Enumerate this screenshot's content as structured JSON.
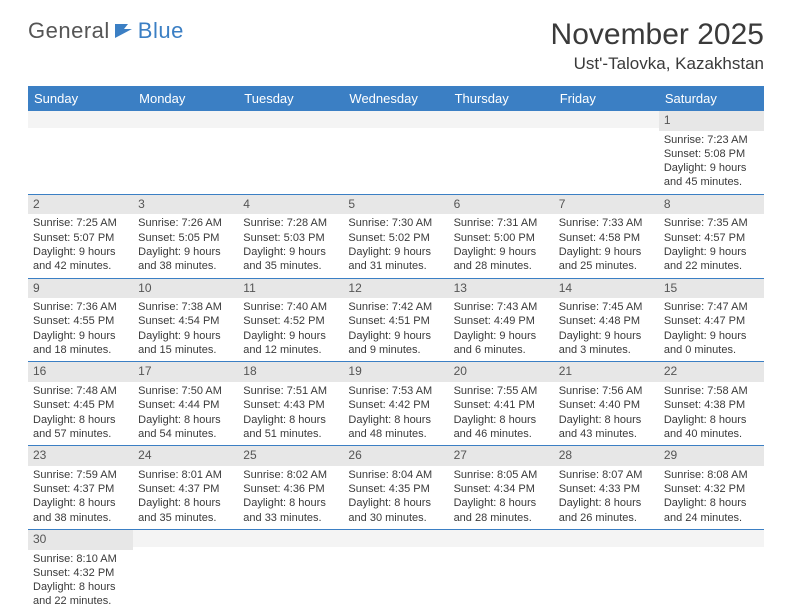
{
  "logo": {
    "text1": "General",
    "text2": "Blue"
  },
  "title": "November 2025",
  "location": "Ust'-Talovka, Kazakhstan",
  "weekdays": [
    "Sunday",
    "Monday",
    "Tuesday",
    "Wednesday",
    "Thursday",
    "Friday",
    "Saturday"
  ],
  "colors": {
    "headerBg": "#3b7fc4",
    "headerText": "#ffffff",
    "dayNumBg": "#e7e7e7",
    "cellBorder": "#3b7fc4",
    "bodyText": "#3a3a3a",
    "logoBlue": "#3b7fc4"
  },
  "weeks": [
    [
      null,
      null,
      null,
      null,
      null,
      null,
      {
        "n": "1",
        "sr": "Sunrise: 7:23 AM",
        "ss": "Sunset: 5:08 PM",
        "dl": "Daylight: 9 hours and 45 minutes."
      }
    ],
    [
      {
        "n": "2",
        "sr": "Sunrise: 7:25 AM",
        "ss": "Sunset: 5:07 PM",
        "dl": "Daylight: 9 hours and 42 minutes."
      },
      {
        "n": "3",
        "sr": "Sunrise: 7:26 AM",
        "ss": "Sunset: 5:05 PM",
        "dl": "Daylight: 9 hours and 38 minutes."
      },
      {
        "n": "4",
        "sr": "Sunrise: 7:28 AM",
        "ss": "Sunset: 5:03 PM",
        "dl": "Daylight: 9 hours and 35 minutes."
      },
      {
        "n": "5",
        "sr": "Sunrise: 7:30 AM",
        "ss": "Sunset: 5:02 PM",
        "dl": "Daylight: 9 hours and 31 minutes."
      },
      {
        "n": "6",
        "sr": "Sunrise: 7:31 AM",
        "ss": "Sunset: 5:00 PM",
        "dl": "Daylight: 9 hours and 28 minutes."
      },
      {
        "n": "7",
        "sr": "Sunrise: 7:33 AM",
        "ss": "Sunset: 4:58 PM",
        "dl": "Daylight: 9 hours and 25 minutes."
      },
      {
        "n": "8",
        "sr": "Sunrise: 7:35 AM",
        "ss": "Sunset: 4:57 PM",
        "dl": "Daylight: 9 hours and 22 minutes."
      }
    ],
    [
      {
        "n": "9",
        "sr": "Sunrise: 7:36 AM",
        "ss": "Sunset: 4:55 PM",
        "dl": "Daylight: 9 hours and 18 minutes."
      },
      {
        "n": "10",
        "sr": "Sunrise: 7:38 AM",
        "ss": "Sunset: 4:54 PM",
        "dl": "Daylight: 9 hours and 15 minutes."
      },
      {
        "n": "11",
        "sr": "Sunrise: 7:40 AM",
        "ss": "Sunset: 4:52 PM",
        "dl": "Daylight: 9 hours and 12 minutes."
      },
      {
        "n": "12",
        "sr": "Sunrise: 7:42 AM",
        "ss": "Sunset: 4:51 PM",
        "dl": "Daylight: 9 hours and 9 minutes."
      },
      {
        "n": "13",
        "sr": "Sunrise: 7:43 AM",
        "ss": "Sunset: 4:49 PM",
        "dl": "Daylight: 9 hours and 6 minutes."
      },
      {
        "n": "14",
        "sr": "Sunrise: 7:45 AM",
        "ss": "Sunset: 4:48 PM",
        "dl": "Daylight: 9 hours and 3 minutes."
      },
      {
        "n": "15",
        "sr": "Sunrise: 7:47 AM",
        "ss": "Sunset: 4:47 PM",
        "dl": "Daylight: 9 hours and 0 minutes."
      }
    ],
    [
      {
        "n": "16",
        "sr": "Sunrise: 7:48 AM",
        "ss": "Sunset: 4:45 PM",
        "dl": "Daylight: 8 hours and 57 minutes."
      },
      {
        "n": "17",
        "sr": "Sunrise: 7:50 AM",
        "ss": "Sunset: 4:44 PM",
        "dl": "Daylight: 8 hours and 54 minutes."
      },
      {
        "n": "18",
        "sr": "Sunrise: 7:51 AM",
        "ss": "Sunset: 4:43 PM",
        "dl": "Daylight: 8 hours and 51 minutes."
      },
      {
        "n": "19",
        "sr": "Sunrise: 7:53 AM",
        "ss": "Sunset: 4:42 PM",
        "dl": "Daylight: 8 hours and 48 minutes."
      },
      {
        "n": "20",
        "sr": "Sunrise: 7:55 AM",
        "ss": "Sunset: 4:41 PM",
        "dl": "Daylight: 8 hours and 46 minutes."
      },
      {
        "n": "21",
        "sr": "Sunrise: 7:56 AM",
        "ss": "Sunset: 4:40 PM",
        "dl": "Daylight: 8 hours and 43 minutes."
      },
      {
        "n": "22",
        "sr": "Sunrise: 7:58 AM",
        "ss": "Sunset: 4:38 PM",
        "dl": "Daylight: 8 hours and 40 minutes."
      }
    ],
    [
      {
        "n": "23",
        "sr": "Sunrise: 7:59 AM",
        "ss": "Sunset: 4:37 PM",
        "dl": "Daylight: 8 hours and 38 minutes."
      },
      {
        "n": "24",
        "sr": "Sunrise: 8:01 AM",
        "ss": "Sunset: 4:37 PM",
        "dl": "Daylight: 8 hours and 35 minutes."
      },
      {
        "n": "25",
        "sr": "Sunrise: 8:02 AM",
        "ss": "Sunset: 4:36 PM",
        "dl": "Daylight: 8 hours and 33 minutes."
      },
      {
        "n": "26",
        "sr": "Sunrise: 8:04 AM",
        "ss": "Sunset: 4:35 PM",
        "dl": "Daylight: 8 hours and 30 minutes."
      },
      {
        "n": "27",
        "sr": "Sunrise: 8:05 AM",
        "ss": "Sunset: 4:34 PM",
        "dl": "Daylight: 8 hours and 28 minutes."
      },
      {
        "n": "28",
        "sr": "Sunrise: 8:07 AM",
        "ss": "Sunset: 4:33 PM",
        "dl": "Daylight: 8 hours and 26 minutes."
      },
      {
        "n": "29",
        "sr": "Sunrise: 8:08 AM",
        "ss": "Sunset: 4:32 PM",
        "dl": "Daylight: 8 hours and 24 minutes."
      }
    ],
    [
      {
        "n": "30",
        "sr": "Sunrise: 8:10 AM",
        "ss": "Sunset: 4:32 PM",
        "dl": "Daylight: 8 hours and 22 minutes."
      },
      null,
      null,
      null,
      null,
      null,
      null
    ]
  ]
}
